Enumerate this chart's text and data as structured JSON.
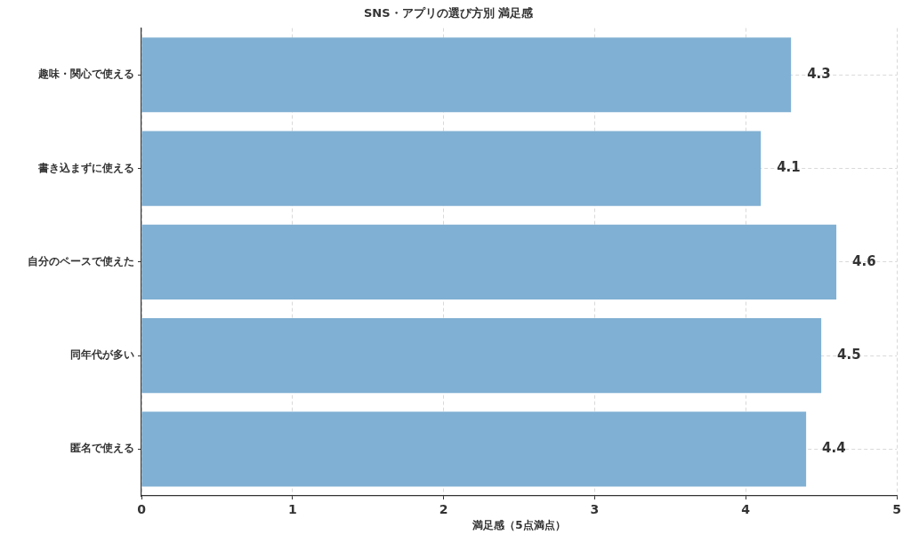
{
  "chart_data": {
    "type": "bar",
    "orientation": "horizontal",
    "title": "SNS・アプリの選び方別 満足感",
    "xlabel": "満足感（5点満点）",
    "categories": [
      "趣味・関心で使える",
      "書き込まずに使える",
      "自分のペースで使えた",
      "同年代が多い",
      "匿名で使える"
    ],
    "values": [
      4.3,
      4.1,
      4.6,
      4.5,
      4.4
    ],
    "color": "#80b0d3",
    "xlim": [
      0,
      5
    ],
    "xticks": [
      0,
      1,
      2,
      3,
      4,
      5
    ],
    "grid": true,
    "data_labels": true
  }
}
